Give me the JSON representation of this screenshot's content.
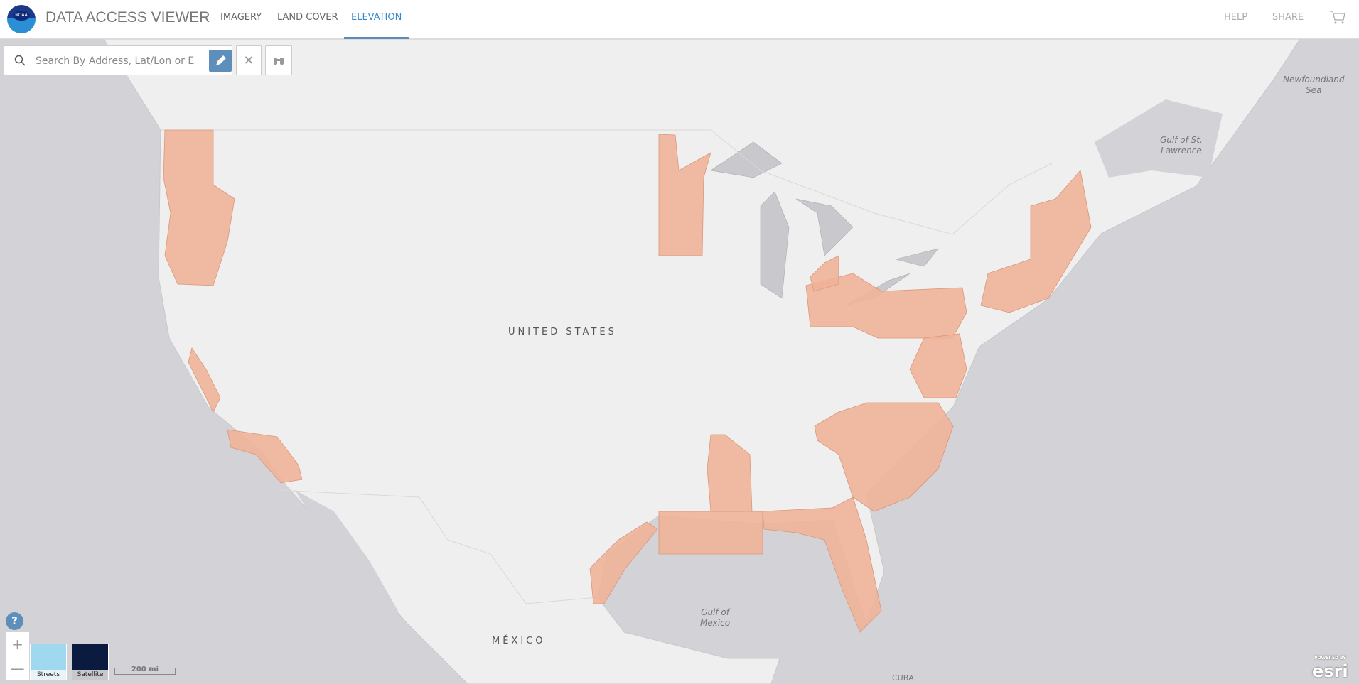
{
  "header": {
    "title": "DATA ACCESS VIEWER",
    "logo_text": "NOAA",
    "tabs": [
      {
        "label": "IMAGERY"
      },
      {
        "label": "LAND COVER"
      },
      {
        "label": "ELEVATION",
        "active": true
      }
    ],
    "help": "HELP",
    "share": "SHARE",
    "cart_icon": "cart-icon"
  },
  "search": {
    "placeholder": "Search By Address, Lat/Lon or Extent",
    "value": ""
  },
  "map": {
    "labels": {
      "us": "UNITED STATES",
      "mexico": "MÉXICO",
      "gulf1": "Gulf of",
      "gulf2": "Mexico",
      "cuba": "CUBA",
      "stl1": "Gulf of St.",
      "stl2": "Lawrence",
      "nf1": "Newfoundland",
      "nf2": "Sea"
    },
    "colors": {
      "land": "#efefef",
      "water": "#d3d2d6",
      "coverage": "#f0b398"
    }
  },
  "controls": {
    "help": "?",
    "zoom_in": "+",
    "zoom_out": "—",
    "basemaps": [
      {
        "label": "Streets"
      },
      {
        "label": "Satellite"
      }
    ],
    "scale": "200 mi"
  },
  "attribution": {
    "powered": "POWERED BY",
    "esri": "esri"
  }
}
